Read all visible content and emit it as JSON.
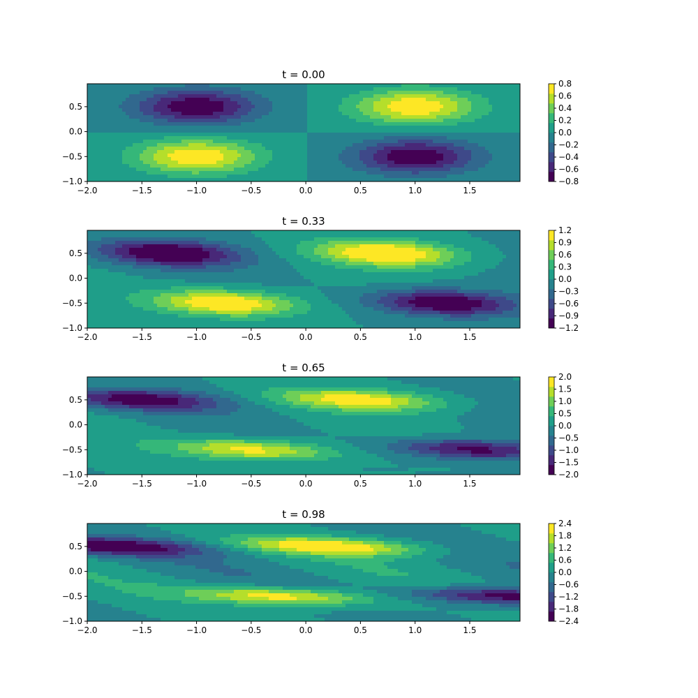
{
  "colors": {
    "viridis": [
      "#440154",
      "#482878",
      "#3e4989",
      "#31688e",
      "#26828e",
      "#1f9e89",
      "#35b779",
      "#6ece58",
      "#b5de2b",
      "#fde725"
    ],
    "axes": "#000000",
    "background": "#ffffff"
  },
  "chart_data": [
    {
      "type": "heatmap",
      "subtype": "filled-contour",
      "title": "t = 0.00",
      "t": 0.0,
      "xlim": [
        -2.0,
        1.96
      ],
      "ylim": [
        -1.0,
        0.96
      ],
      "xticks": [
        "−2.0",
        "−1.5",
        "−1.0",
        "−0.5",
        "0.0",
        "0.5",
        "1.0",
        "1.5"
      ],
      "yticks": [
        "−1.0",
        "−0.5",
        "0.0",
        "0.5"
      ],
      "colorbar": {
        "range": [
          -0.8,
          0.8
        ],
        "ticks": [
          "−0.8",
          "−0.6",
          "−0.4",
          "−0.2",
          "0.0",
          "0.2",
          "0.4",
          "0.6",
          "0.8"
        ]
      }
    },
    {
      "type": "heatmap",
      "subtype": "filled-contour",
      "title": "t = 0.33",
      "t": 0.33,
      "xlim": [
        -2.0,
        1.96
      ],
      "ylim": [
        -1.0,
        0.96
      ],
      "xticks": [
        "−2.0",
        "−1.5",
        "−1.0",
        "−0.5",
        "0.0",
        "0.5",
        "1.0",
        "1.5"
      ],
      "yticks": [
        "−1.0",
        "−0.5",
        "0.0",
        "0.5"
      ],
      "colorbar": {
        "range": [
          -1.2,
          1.2
        ],
        "ticks": [
          "−1.2",
          "−0.9",
          "−0.6",
          "−0.3",
          "0.0",
          "0.3",
          "0.6",
          "0.9",
          "1.2"
        ]
      }
    },
    {
      "type": "heatmap",
      "subtype": "filled-contour",
      "title": "t = 0.65",
      "t": 0.65,
      "xlim": [
        -2.0,
        1.96
      ],
      "ylim": [
        -1.0,
        0.96
      ],
      "xticks": [
        "−2.0",
        "−1.5",
        "−1.0",
        "−0.5",
        "0.0",
        "0.5",
        "1.0",
        "1.5"
      ],
      "yticks": [
        "−1.0",
        "−0.5",
        "0.0",
        "0.5"
      ],
      "colorbar": {
        "range": [
          -2.0,
          2.0
        ],
        "ticks": [
          "−2.0",
          "−1.5",
          "−1.0",
          "−0.5",
          "0.0",
          "0.5",
          "1.0",
          "1.5",
          "2.0"
        ]
      }
    },
    {
      "type": "heatmap",
      "subtype": "filled-contour",
      "title": "t = 0.98",
      "t": 0.98,
      "xlim": [
        -2.0,
        1.96
      ],
      "ylim": [
        -1.0,
        0.96
      ],
      "xticks": [
        "−2.0",
        "−1.5",
        "−1.0",
        "−0.5",
        "0.0",
        "0.5",
        "1.0",
        "1.5"
      ],
      "yticks": [
        "−1.0",
        "−0.5",
        "0.0",
        "0.5"
      ],
      "colorbar": {
        "range": [
          -2.4,
          2.4
        ],
        "ticks": [
          "−2.4",
          "−1.8",
          "−1.2",
          "−0.6",
          "0.0",
          "0.6",
          "1.2",
          "1.8",
          "2.4"
        ]
      }
    }
  ]
}
